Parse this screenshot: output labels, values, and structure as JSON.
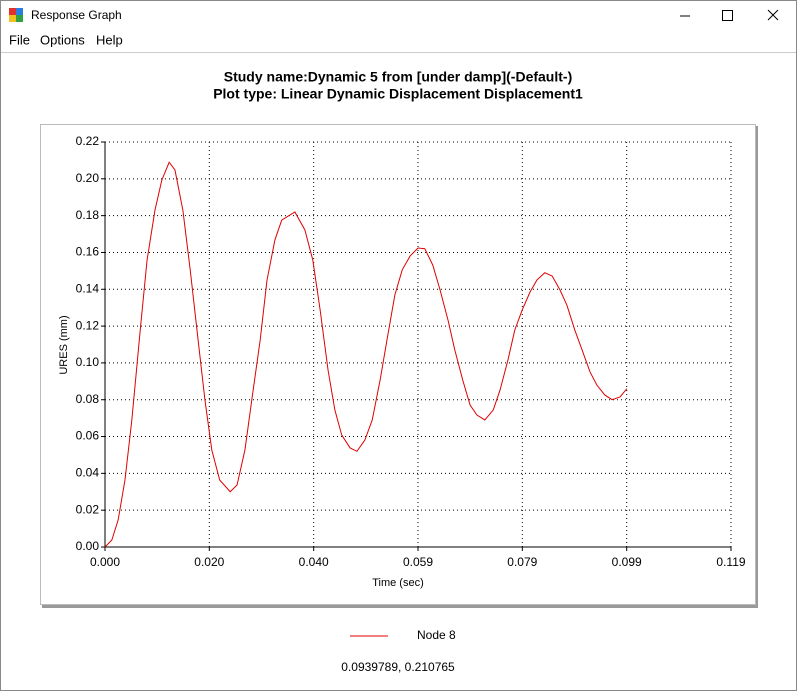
{
  "window": {
    "title": "Response Graph",
    "menu": [
      "File",
      "Options",
      "Help"
    ],
    "status": "0.0939789, 0.210765"
  },
  "chart_data": {
    "type": "line",
    "title": "Study name:Dynamic 5 from [under damp](-Default-)",
    "subtitle": "Plot type: Linear Dynamic Displacement Displacement1",
    "x_label": "Time (sec)",
    "y_label": "URES (mm)",
    "x": [
      0.0,
      0.0013,
      0.0025,
      0.0038,
      0.0051,
      0.0067,
      0.008,
      0.0095,
      0.0108,
      0.0122,
      0.0133,
      0.0148,
      0.0162,
      0.0177,
      0.019,
      0.0203,
      0.0218,
      0.0238,
      0.0251,
      0.0266,
      0.0279,
      0.0295,
      0.0308,
      0.0323,
      0.0336,
      0.0361,
      0.038,
      0.0395,
      0.0409,
      0.0424,
      0.0437,
      0.045,
      0.0466,
      0.0479,
      0.0494,
      0.0508,
      0.0523,
      0.0536,
      0.0551,
      0.0565,
      0.058,
      0.0595,
      0.0608,
      0.0623,
      0.0637,
      0.0652,
      0.0665,
      0.068,
      0.0694,
      0.0707,
      0.0722,
      0.0738,
      0.0751,
      0.0766,
      0.0779,
      0.0793,
      0.0808,
      0.0821,
      0.0836,
      0.085,
      0.0865,
      0.0878,
      0.0893,
      0.0907,
      0.0922,
      0.0935,
      0.095,
      0.0964,
      0.0979,
      0.0992
    ],
    "series": [
      {
        "name": "Node 8",
        "color": "#e00000",
        "values": [
          0.0,
          0.0038,
          0.0147,
          0.0364,
          0.069,
          0.1179,
          0.1559,
          0.183,
          0.1993,
          0.209,
          0.2048,
          0.183,
          0.1505,
          0.1124,
          0.0798,
          0.0527,
          0.0364,
          0.03,
          0.0337,
          0.0527,
          0.0798,
          0.1124,
          0.145,
          0.1668,
          0.1776,
          0.182,
          0.1722,
          0.1559,
          0.1287,
          0.0961,
          0.0744,
          0.0608,
          0.0538,
          0.052,
          0.0581,
          0.069,
          0.0907,
          0.1124,
          0.1369,
          0.1505,
          0.1581,
          0.1624,
          0.162,
          0.1532,
          0.1396,
          0.1233,
          0.107,
          0.0907,
          0.0771,
          0.0717,
          0.069,
          0.0744,
          0.0853,
          0.1016,
          0.1179,
          0.1287,
          0.1385,
          0.145,
          0.149,
          0.1472,
          0.1396,
          0.1314,
          0.1179,
          0.107,
          0.0951,
          0.088,
          0.0826,
          0.08,
          0.0815,
          0.086
        ]
      }
    ],
    "xlim": [
      0,
      0.119
    ],
    "xticks": [
      {
        "value": 0,
        "label": "0.000"
      },
      {
        "value": 0.01983,
        "label": "0.020"
      },
      {
        "value": 0.03967,
        "label": "0.040"
      },
      {
        "value": 0.0595,
        "label": "0.059"
      },
      {
        "value": 0.07933,
        "label": "0.079"
      },
      {
        "value": 0.09917,
        "label": "0.099"
      },
      {
        "value": 0.119,
        "label": "0.119"
      }
    ],
    "ylim": [
      0,
      0.22
    ],
    "yticks": [
      {
        "value": 0,
        "label": "0.00"
      },
      {
        "value": 0.02,
        "label": "0.02"
      },
      {
        "value": 0.04,
        "label": "0.04"
      },
      {
        "value": 0.06,
        "label": "0.06"
      },
      {
        "value": 0.08,
        "label": "0.08"
      },
      {
        "value": 0.1,
        "label": "0.10"
      },
      {
        "value": 0.12,
        "label": "0.12"
      },
      {
        "value": 0.14,
        "label": "0.14"
      },
      {
        "value": 0.16,
        "label": "0.16"
      },
      {
        "value": 0.18,
        "label": "0.18"
      },
      {
        "value": 0.2,
        "label": "0.20"
      },
      {
        "value": 0.22,
        "label": "0.22"
      }
    ],
    "grid": true,
    "legend": "bottom"
  }
}
